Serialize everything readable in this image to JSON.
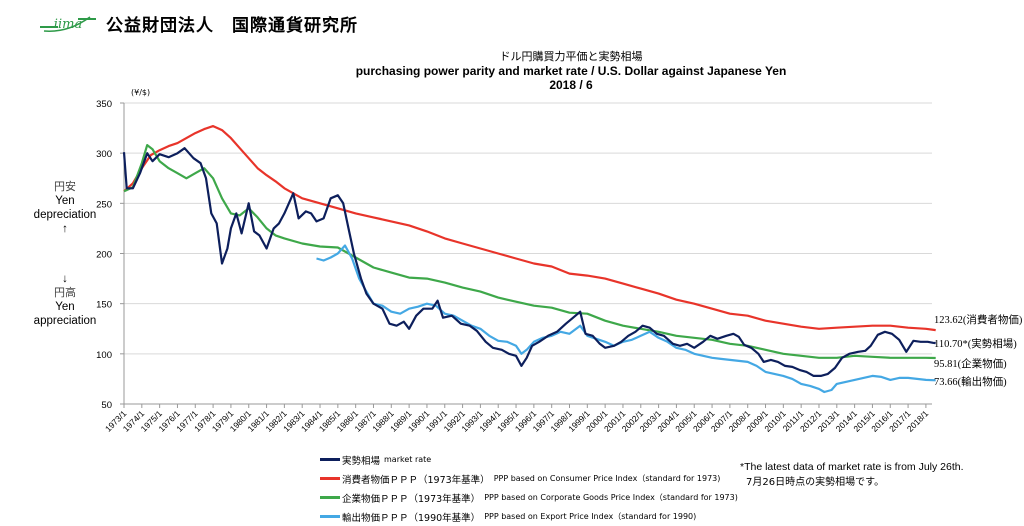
{
  "header": {
    "logo_text": "iima",
    "organization": "公益財団法人　国際通貨研究所"
  },
  "side_labels": {
    "depreciation_jp": "円安",
    "depreciation_en1": "Yen",
    "depreciation_en2": "depreciation",
    "depreciation_arrow": "↑",
    "appreciation_arrow": "↓",
    "appreciation_jp": "円高",
    "appreciation_en1": "Yen",
    "appreciation_en2": "appreciation"
  },
  "end_labels": {
    "cpi": "123.62(消費者物価)",
    "market": "110.70*(実勢相場)",
    "corporate": "95.81(企業物価)",
    "export": "73.66(輸出物価)"
  },
  "note": {
    "line1": "*The latest data of market rate is from July 26th.",
    "line2": "7月26日時点の実勢相場です。"
  },
  "chart_data": {
    "type": "line",
    "title_jp": "ドル円購買力平価と実勢相場",
    "title": "purchasing power parity and market rate / U.S. Dollar against Japanese Yen",
    "subtitle": "2018 / 6",
    "unit_label": "(¥/$)",
    "xlabel": "",
    "ylabel": "(¥/$)",
    "ylim": [
      50,
      350
    ],
    "yticks": [
      50,
      100,
      150,
      200,
      250,
      300,
      350
    ],
    "xlim": [
      1973.0,
      2018.6
    ],
    "xticks": [
      "1973/1",
      "1974/1",
      "1975/1",
      "1976/1",
      "1977/1",
      "1978/1",
      "1979/1",
      "1980/1",
      "1981/1",
      "1982/1",
      "1983/1",
      "1984/1",
      "1985/1",
      "1986/1",
      "1987/1",
      "1988/1",
      "1989/1",
      "1990/1",
      "1991/1",
      "1992/1",
      "1993/1",
      "1994/1",
      "1995/1",
      "1996/1",
      "1997/1",
      "1998/1",
      "1999/1",
      "2000/1",
      "2001/1",
      "2002/1",
      "2003/1",
      "2004/1",
      "2005/1",
      "2006/1",
      "2007/1",
      "2008/1",
      "2009/1",
      "2010/1",
      "2011/1",
      "2012/1",
      "2013/1",
      "2014/1",
      "2015/1",
      "2016/1",
      "2017/1",
      "2018/1"
    ],
    "grid": true,
    "legend_position": "bottom",
    "series": [
      {
        "name": "実勢相場 market rate",
        "legend_jp": "実勢相場",
        "legend_en": "market rate",
        "color": "#0d1f5c",
        "x": [
          1973.0,
          1973.15,
          1973.5,
          1973.9,
          1974.3,
          1974.6,
          1975.0,
          1975.5,
          1976.0,
          1976.4,
          1976.9,
          1977.3,
          1977.6,
          1977.9,
          1978.2,
          1978.5,
          1978.8,
          1979.0,
          1979.3,
          1979.6,
          1980.0,
          1980.3,
          1980.6,
          1981.0,
          1981.4,
          1981.7,
          1982.0,
          1982.5,
          1982.8,
          1983.2,
          1983.5,
          1983.8,
          1984.2,
          1984.6,
          1985.0,
          1985.3,
          1985.6,
          1985.9,
          1986.3,
          1986.6,
          1987.0,
          1987.5,
          1987.9,
          1988.3,
          1988.7,
          1989.0,
          1989.4,
          1989.8,
          1990.3,
          1990.6,
          1990.9,
          1991.4,
          1991.9,
          1992.4,
          1992.8,
          1993.3,
          1993.7,
          1994.2,
          1994.6,
          1995.0,
          1995.3,
          1995.6,
          1995.9,
          1996.3,
          1996.8,
          1997.3,
          1997.8,
          1998.2,
          1998.6,
          1998.9,
          1999.3,
          1999.7,
          2000.0,
          2000.5,
          2000.9,
          2001.3,
          2001.7,
          2002.1,
          2002.5,
          2002.9,
          2003.3,
          2003.8,
          2004.2,
          2004.6,
          2005.0,
          2005.5,
          2005.9,
          2006.3,
          2006.8,
          2007.2,
          2007.5,
          2007.8,
          2008.2,
          2008.6,
          2008.9,
          2009.3,
          2009.7,
          2010.1,
          2010.5,
          2010.9,
          2011.3,
          2011.7,
          2012.1,
          2012.5,
          2012.9,
          2013.3,
          2013.7,
          2014.2,
          2014.6,
          2014.9,
          2015.3,
          2015.7,
          2016.1,
          2016.5,
          2016.9,
          2017.3,
          2017.7,
          2018.1,
          2018.4,
          2018.55
        ],
        "values": [
          301,
          265,
          265,
          280,
          300,
          292,
          299,
          296,
          300,
          305,
          295,
          290,
          275,
          240,
          230,
          190,
          205,
          225,
          240,
          220,
          250,
          222,
          218,
          205,
          225,
          230,
          240,
          260,
          235,
          242,
          240,
          232,
          235,
          255,
          258,
          250,
          225,
          200,
          175,
          160,
          150,
          145,
          130,
          128,
          132,
          125,
          138,
          145,
          145,
          153,
          136,
          138,
          130,
          128,
          123,
          112,
          106,
          104,
          100,
          98,
          88,
          96,
          108,
          112,
          118,
          122,
          130,
          136,
          142,
          120,
          118,
          110,
          106,
          108,
          112,
          118,
          122,
          128,
          126,
          120,
          118,
          110,
          108,
          110,
          106,
          112,
          118,
          115,
          118,
          120,
          117,
          109,
          106,
          100,
          92,
          94,
          92,
          88,
          87,
          84,
          82,
          78,
          78,
          80,
          86,
          96,
          100,
          102,
          103,
          108,
          119,
          122,
          120,
          114,
          102,
          113,
          112,
          112,
          111,
          110.7
        ],
        "end_value": 110.7
      },
      {
        "name": "消費者物価PPP(1973年基準) PPP based on Consumer Price Index (standard for 1973)",
        "legend_jp": "消費者物価ＰＰＰ（1973年基準）",
        "legend_en": "PPP based on Consumer Price Index（standard for 1973)",
        "color": "#e8342a",
        "x": [
          1973.0,
          1973.5,
          1974.0,
          1974.5,
          1975.0,
          1975.5,
          1976.0,
          1976.5,
          1977.0,
          1977.5,
          1978.0,
          1978.5,
          1979.0,
          1979.5,
          1980.0,
          1980.5,
          1981.0,
          1981.5,
          1982.0,
          1983.0,
          1984.0,
          1985.0,
          1986.0,
          1987.0,
          1988.0,
          1989.0,
          1990.0,
          1991.0,
          1992.0,
          1993.0,
          1994.0,
          1995.0,
          1996.0,
          1997.0,
          1998.0,
          1999.0,
          2000.0,
          2001.0,
          2002.0,
          2003.0,
          2004.0,
          2005.0,
          2006.0,
          2007.0,
          2008.0,
          2009.0,
          2010.0,
          2011.0,
          2012.0,
          2013.0,
          2014.0,
          2015.0,
          2016.0,
          2017.0,
          2018.0,
          2018.55
        ],
        "values": [
          262,
          270,
          285,
          298,
          303,
          307,
          310,
          315,
          320,
          324,
          327,
          323,
          315,
          305,
          295,
          285,
          278,
          272,
          265,
          255,
          250,
          245,
          240,
          236,
          232,
          228,
          222,
          215,
          210,
          205,
          200,
          195,
          190,
          187,
          180,
          178,
          175,
          170,
          165,
          160,
          154,
          150,
          145,
          140,
          138,
          133,
          130,
          127,
          125,
          126,
          127,
          128,
          128,
          126,
          125,
          123.62
        ],
        "end_value": 123.62
      },
      {
        "name": "企業物価PPP(1973年基準) PPP based on Corporate Goods Price Index (standard for 1973)",
        "legend_jp": "企業物価ＰＰＰ（1973年基準）",
        "legend_en": "PPP based on Corporate Goods Price Index（standard for 1973)",
        "color": "#3ea84a",
        "x": [
          1973.0,
          1973.5,
          1974.0,
          1974.3,
          1974.6,
          1975.0,
          1975.5,
          1976.0,
          1976.5,
          1977.0,
          1977.5,
          1978.0,
          1978.5,
          1979.0,
          1979.5,
          1980.0,
          1980.5,
          1981.0,
          1981.5,
          1982.0,
          1983.0,
          1984.0,
          1985.0,
          1986.0,
          1987.0,
          1988.0,
          1989.0,
          1990.0,
          1991.0,
          1992.0,
          1993.0,
          1994.0,
          1995.0,
          1996.0,
          1997.0,
          1998.0,
          1999.0,
          2000.0,
          2001.0,
          2002.0,
          2003.0,
          2004.0,
          2005.0,
          2006.0,
          2007.0,
          2008.0,
          2009.0,
          2010.0,
          2011.0,
          2012.0,
          2013.0,
          2014.0,
          2015.0,
          2016.0,
          2017.0,
          2018.0,
          2018.55
        ],
        "values": [
          262,
          266,
          290,
          308,
          304,
          292,
          285,
          280,
          275,
          280,
          285,
          275,
          255,
          240,
          238,
          245,
          236,
          225,
          218,
          215,
          210,
          207,
          206,
          196,
          186,
          181,
          176,
          175,
          171,
          166,
          162,
          156,
          152,
          148,
          146,
          141,
          140,
          133,
          128,
          125,
          122,
          118,
          116,
          114,
          110,
          108,
          104,
          100,
          98,
          96,
          96,
          98,
          97,
          96,
          96,
          96,
          95.81
        ],
        "end_value": 95.81
      },
      {
        "name": "輸出物価PPP(1990年基準) PPP based on Export Price Index (standard for 1990)",
        "legend_jp": "輸出物価ＰＰＰ（1990年基準）",
        "legend_en": "PPP based on Export Price Index（standard for 1990)",
        "color": "#44a8e4",
        "x": [
          1983.8,
          1984.2,
          1984.6,
          1985.0,
          1985.4,
          1985.8,
          1986.2,
          1986.6,
          1987.0,
          1987.5,
          1988.0,
          1988.5,
          1989.0,
          1989.5,
          1990.0,
          1990.5,
          1991.0,
          1991.5,
          1992.0,
          1992.5,
          1993.0,
          1993.5,
          1994.0,
          1994.5,
          1995.0,
          1995.3,
          1995.6,
          1996.0,
          1996.5,
          1997.0,
          1997.5,
          1998.0,
          1998.6,
          1999.0,
          1999.5,
          2000.0,
          2000.5,
          2001.0,
          2001.5,
          2002.0,
          2002.5,
          2003.0,
          2003.5,
          2004.0,
          2004.5,
          2005.0,
          2005.5,
          2006.0,
          2006.5,
          2007.0,
          2007.5,
          2008.0,
          2008.5,
          2009.0,
          2009.5,
          2010.0,
          2010.5,
          2011.0,
          2011.5,
          2012.0,
          2012.3,
          2012.7,
          2013.0,
          2013.5,
          2014.0,
          2014.5,
          2015.0,
          2015.5,
          2016.0,
          2016.5,
          2017.0,
          2017.5,
          2018.0,
          2018.55
        ],
        "values": [
          195,
          193,
          196,
          200,
          208,
          195,
          175,
          162,
          150,
          148,
          142,
          140,
          145,
          147,
          150,
          148,
          140,
          138,
          133,
          128,
          125,
          118,
          113,
          112,
          108,
          100,
          104,
          112,
          116,
          118,
          122,
          120,
          128,
          118,
          115,
          112,
          108,
          112,
          114,
          118,
          122,
          116,
          112,
          106,
          104,
          100,
          98,
          96,
          95,
          94,
          93,
          92,
          88,
          82,
          80,
          78,
          75,
          70,
          68,
          65,
          62,
          64,
          70,
          72,
          74,
          76,
          78,
          77,
          74,
          76,
          76,
          75,
          74,
          73.66
        ],
        "end_value": 73.66
      }
    ]
  }
}
